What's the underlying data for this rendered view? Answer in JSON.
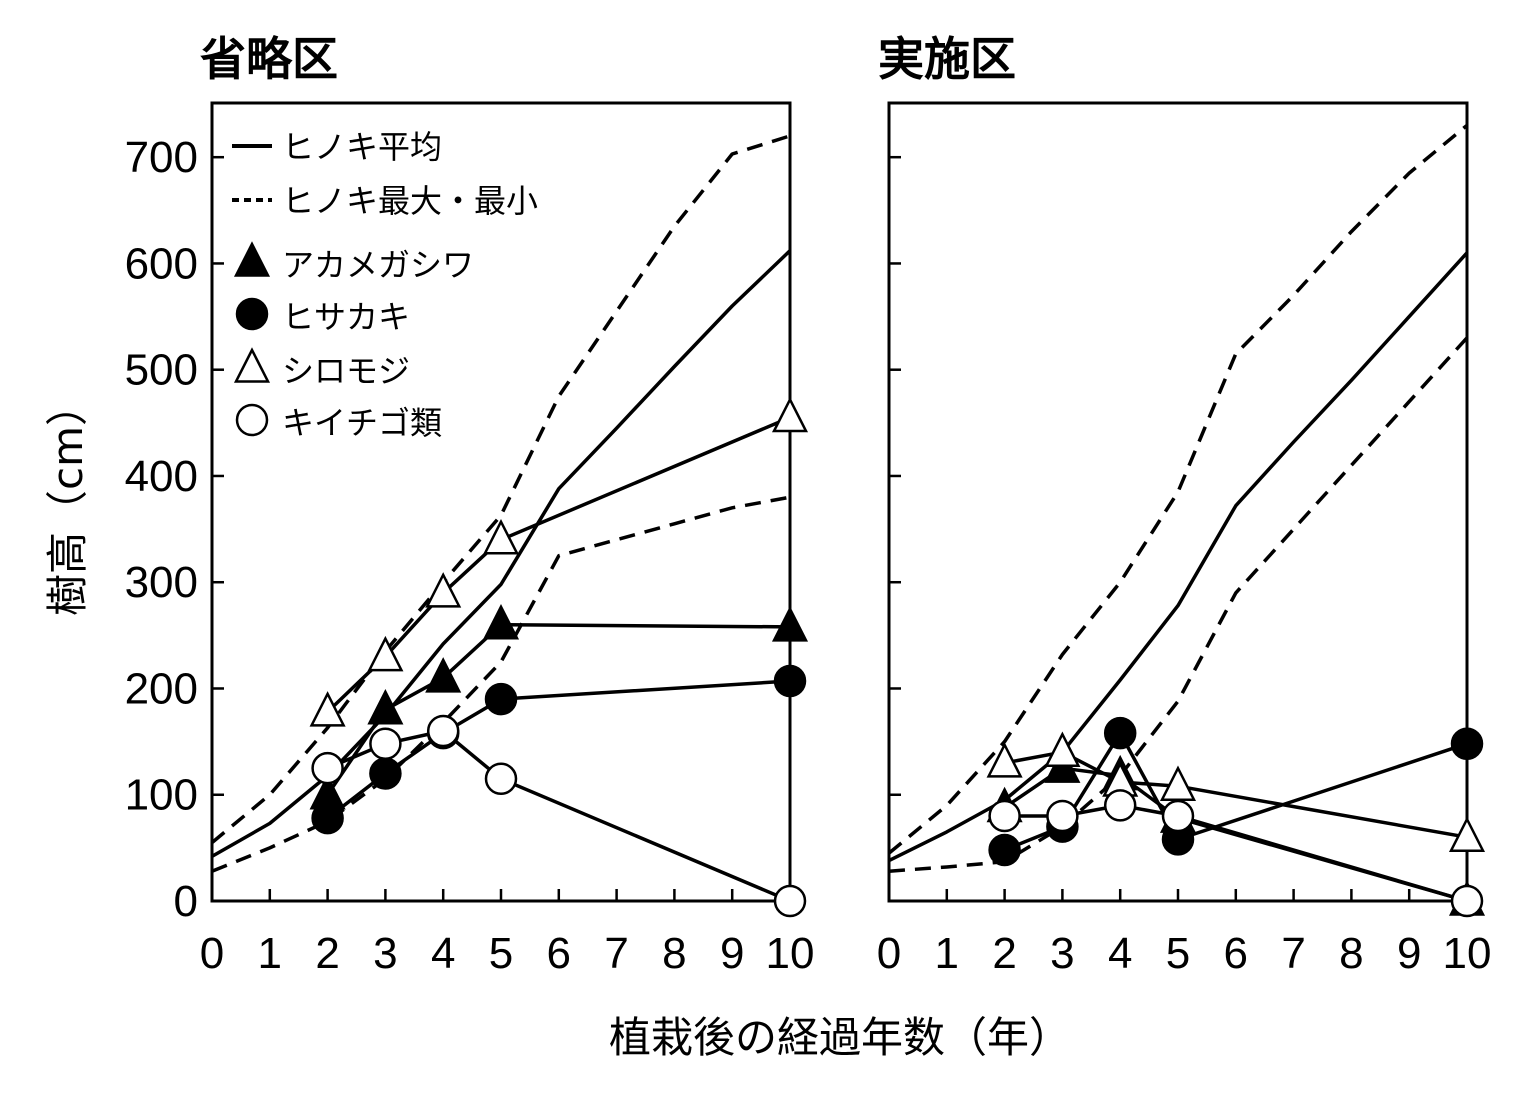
{
  "colors": {
    "ink": "#000000",
    "background": "#ffffff",
    "open_marker_fill": "#ffffff"
  },
  "chart_data": [
    {
      "type": "line",
      "title": "省略区",
      "xlabel": "植栽後の経過年数（年）",
      "ylabel": "樹高（cm）",
      "xlim": [
        0,
        10
      ],
      "ylim": [
        0,
        700
      ],
      "xticks": [
        0,
        1,
        2,
        3,
        4,
        5,
        6,
        7,
        8,
        9,
        10
      ],
      "yticks": [
        0,
        100,
        200,
        300,
        400,
        500,
        600,
        700
      ],
      "legend": [
        {
          "label": "ヒノキ平均",
          "style": "solid-line"
        },
        {
          "label": "ヒノキ最大・最小",
          "style": "dashed-line"
        },
        {
          "label": "アカメガシワ",
          "marker": "filled-triangle"
        },
        {
          "label": "ヒサカキ",
          "marker": "filled-circle"
        },
        {
          "label": "シロモジ",
          "marker": "open-triangle"
        },
        {
          "label": "キイチゴ類",
          "marker": "open-circle"
        }
      ],
      "legend_position": "top-left",
      "series": [
        {
          "name": "ヒノキ平均",
          "style": "solid",
          "marker": "none",
          "points": [
            [
              0,
              42
            ],
            [
              1,
              73
            ],
            [
              2,
              118
            ],
            [
              3,
              175
            ],
            [
              4,
              242
            ],
            [
              5,
              298
            ],
            [
              6,
              388
            ],
            [
              7,
              445
            ],
            [
              8,
              503
            ],
            [
              9,
              560
            ],
            [
              10,
              612
            ]
          ]
        },
        {
          "name": "ヒノキ最大・最小",
          "style": "dashed",
          "marker": "none",
          "points": [
            [
              0,
              55
            ],
            [
              1,
              100
            ],
            [
              2,
              163
            ],
            [
              3,
              235
            ],
            [
              4,
              300
            ],
            [
              5,
              363
            ],
            [
              6,
              475
            ],
            [
              7,
              555
            ],
            [
              8,
              635
            ],
            [
              9,
              703
            ],
            [
              10,
              720
            ]
          ]
        },
        {
          "name": "ヒノキ最大・最小",
          "style": "dashed",
          "marker": "none",
          "points": [
            [
              0,
              28
            ],
            [
              1,
              50
            ],
            [
              2,
              75
            ],
            [
              3,
              115
            ],
            [
              4,
              168
            ],
            [
              5,
              225
            ],
            [
              6,
              325
            ],
            [
              7,
              340
            ],
            [
              8,
              355
            ],
            [
              9,
              370
            ],
            [
              10,
              380
            ]
          ]
        },
        {
          "name": "アカメガシワ",
          "style": "solid",
          "marker": "filled-triangle",
          "points": [
            [
              2,
              100
            ],
            [
              3,
              180
            ],
            [
              4,
              210
            ],
            [
              5,
              260
            ],
            [
              10,
              258
            ]
          ]
        },
        {
          "name": "ヒサカキ",
          "style": "solid",
          "marker": "filled-circle",
          "points": [
            [
              2,
              78
            ],
            [
              3,
              120
            ],
            [
              4,
              158
            ],
            [
              5,
              190
            ],
            [
              10,
              207
            ]
          ]
        },
        {
          "name": "シロモジ",
          "style": "solid",
          "marker": "open-triangle",
          "points": [
            [
              2,
              178
            ],
            [
              3,
              230
            ],
            [
              4,
              290
            ],
            [
              5,
              340
            ],
            [
              10,
              455
            ]
          ]
        },
        {
          "name": "キイチゴ類",
          "style": "solid",
          "marker": "open-circle",
          "points": [
            [
              2,
              125
            ],
            [
              3,
              148
            ],
            [
              4,
              160
            ],
            [
              5,
              115
            ],
            [
              10,
              0
            ]
          ]
        }
      ]
    },
    {
      "type": "line",
      "title": "実施区",
      "xlim": [
        0,
        10
      ],
      "ylim": [
        0,
        700
      ],
      "xticks": [
        0,
        1,
        2,
        3,
        4,
        5,
        6,
        7,
        8,
        9,
        10
      ],
      "yticks": [
        0,
        100,
        200,
        300,
        400,
        500,
        600,
        700
      ],
      "series": [
        {
          "name": "ヒノキ平均",
          "style": "solid",
          "marker": "none",
          "points": [
            [
              0,
              38
            ],
            [
              1,
              65
            ],
            [
              2,
              95
            ],
            [
              3,
              140
            ],
            [
              4,
              208
            ],
            [
              5,
              278
            ],
            [
              6,
              372
            ],
            [
              7,
              432
            ],
            [
              8,
              490
            ],
            [
              9,
              550
            ],
            [
              10,
              610
            ]
          ]
        },
        {
          "name": "ヒノキ最大・最小",
          "style": "dashed",
          "marker": "none",
          "points": [
            [
              0,
              45
            ],
            [
              1,
              90
            ],
            [
              2,
              150
            ],
            [
              3,
              232
            ],
            [
              4,
              300
            ],
            [
              5,
              385
            ],
            [
              6,
              515
            ],
            [
              7,
              570
            ],
            [
              8,
              630
            ],
            [
              9,
              685
            ],
            [
              10,
              730
            ]
          ]
        },
        {
          "name": "ヒノキ最大・最小",
          "style": "dashed",
          "marker": "none",
          "points": [
            [
              0,
              28
            ],
            [
              1,
              32
            ],
            [
              2,
              37
            ],
            [
              3,
              70
            ],
            [
              4,
              118
            ],
            [
              5,
              188
            ],
            [
              6,
              290
            ],
            [
              7,
              350
            ],
            [
              8,
              410
            ],
            [
              9,
              470
            ],
            [
              10,
              530
            ]
          ]
        },
        {
          "name": "アカメガシワ",
          "style": "solid",
          "marker": "filled-triangle",
          "points": [
            [
              2,
              88
            ],
            [
              3,
              125
            ],
            [
              4,
              118
            ],
            [
              5,
              78
            ],
            [
              10,
              0
            ]
          ]
        },
        {
          "name": "ヒサカキ",
          "style": "solid",
          "marker": "filled-circle",
          "points": [
            [
              2,
              48
            ],
            [
              3,
              70
            ],
            [
              4,
              158
            ],
            [
              5,
              58
            ],
            [
              10,
              148
            ]
          ]
        },
        {
          "name": "シロモジ",
          "style": "solid",
          "marker": "open-triangle",
          "points": [
            [
              2,
              130
            ],
            [
              3,
              140
            ],
            [
              4,
              112
            ],
            [
              5,
              108
            ],
            [
              10,
              60
            ]
          ]
        },
        {
          "name": "キイチゴ類",
          "style": "solid",
          "marker": "open-circle",
          "points": [
            [
              2,
              80
            ],
            [
              3,
              80
            ],
            [
              4,
              90
            ],
            [
              5,
              80
            ],
            [
              10,
              0
            ]
          ]
        }
      ]
    }
  ]
}
